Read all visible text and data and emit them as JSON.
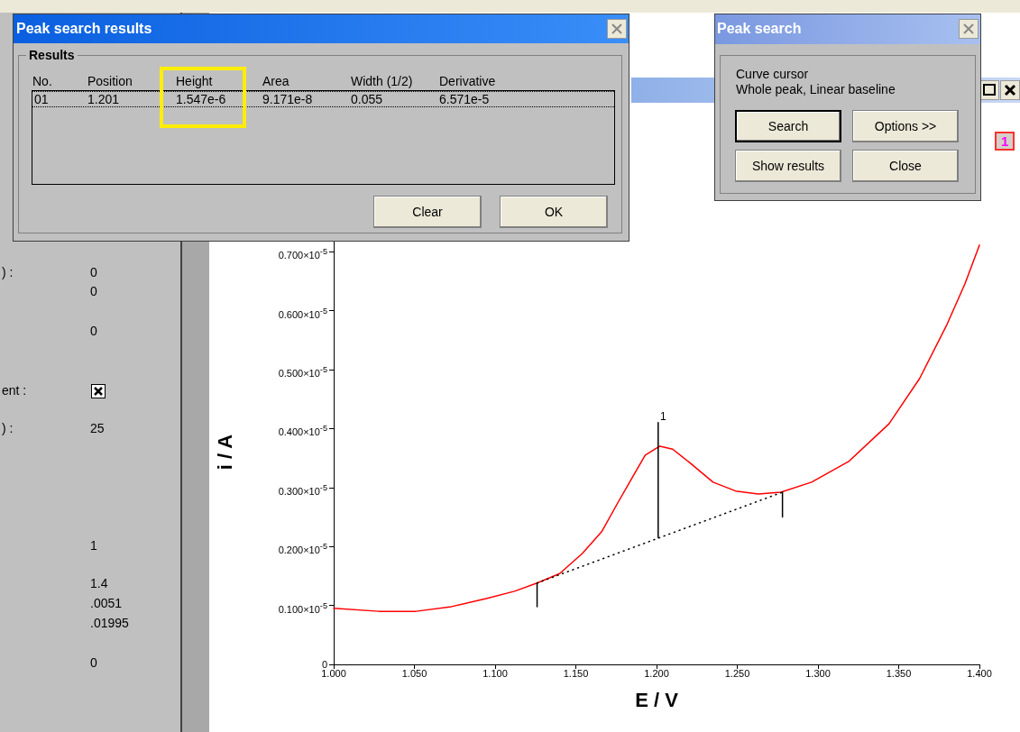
{
  "chart_data": {
    "type": "line",
    "xlabel": "E / V",
    "ylabel": "i / A",
    "xlim": [
      1.0,
      1.4
    ],
    "xticks": [
      {
        "value": 1.0,
        "label": "1.000"
      },
      {
        "value": 1.05,
        "label": "1.050"
      },
      {
        "value": 1.1,
        "label": "1.100"
      },
      {
        "value": 1.15,
        "label": "1.150"
      },
      {
        "value": 1.2,
        "label": "1.200"
      },
      {
        "value": 1.25,
        "label": "1.250"
      },
      {
        "value": 1.3,
        "label": "1.300"
      },
      {
        "value": 1.35,
        "label": "1.350"
      },
      {
        "value": 1.4,
        "label": "1.400"
      }
    ],
    "ylim": [
      0,
      7.2e-06
    ],
    "yticks": [
      0,
      {
        "value": 1e-06,
        "label": "0.100×10$^{-5}$"
      },
      {
        "value": 2e-06,
        "label": "0.200×10$^{-5}$"
      },
      {
        "value": 3e-06,
        "label": "0.300×10$^{-5}$"
      },
      {
        "value": 4e-06,
        "label": "0.400×10$^{-5}$"
      },
      {
        "value": 5e-06,
        "label": "0.500×10$^{-5}$"
      },
      {
        "value": 6e-06,
        "label": "0.600×10$^{-5}$"
      },
      {
        "value": 7e-06,
        "label": "0.700×10$^{-5}$"
      }
    ],
    "grid": false,
    "marker": "none",
    "line_style": "solid",
    "series": [
      {
        "color": "#ff0000",
        "x": [
          1.0,
          1.028,
          1.051,
          1.073,
          1.095,
          1.112,
          1.126,
          1.14,
          1.154,
          1.166,
          1.176,
          1.185,
          1.193,
          1.202,
          1.21,
          1.221,
          1.235,
          1.249,
          1.263,
          1.277,
          1.296,
          1.319,
          1.344,
          1.363,
          1.38,
          1.391,
          1.4
        ],
        "values": [
          9.5e-07,
          9e-07,
          9e-07,
          9.8e-07,
          1.12e-06,
          1.24e-06,
          1.38e-06,
          1.54e-06,
          1.88e-06,
          2.25e-06,
          2.74e-06,
          3.17e-06,
          3.55e-06,
          3.7e-06,
          3.65e-06,
          3.41e-06,
          3.09e-06,
          2.94e-06,
          2.89e-06,
          2.92e-06,
          3.09e-06,
          3.44e-06,
          4.08e-06,
          4.85e-06,
          5.77e-06,
          6.45e-06,
          7.11e-06
        ]
      },
      {
        "color": "#000000",
        "line_style": "dotted",
        "x": [
          1.126,
          1.278
        ],
        "values": [
          1.38e-06,
          2.92e-06
        ]
      },
      {
        "color": "#000000",
        "x": [
          1.201,
          1.201
        ],
        "values": [
          2.15e-06,
          4.1e-06
        ]
      },
      {
        "color": "#000000",
        "x": [
          1.126,
          1.126
        ],
        "values": [
          9.8e-07,
          1.38e-06
        ]
      },
      {
        "color": "#000000",
        "x": [
          1.278,
          1.278
        ],
        "values": [
          2.5e-06,
          2.92e-06
        ]
      }
    ],
    "annotations": [
      "Peak search results",
      "Results",
      "No.",
      "Position",
      "Height",
      "Area",
      "Width (1/2)",
      "Derivative",
      "01",
      "1.201",
      "1.547e-6",
      "9.171e-8",
      "0.055",
      "6.571e-5",
      "Clear",
      "OK",
      "Peak search",
      "Curve cursor",
      "Whole peak, Linear baseline",
      "Search",
      "Options >>",
      "Show results",
      "Close",
      "1",
      ") :",
      "0",
      "0",
      "0",
      "ent :",
      ") :",
      "25",
      "1",
      "1.4",
      ".0051",
      ".01995",
      "0",
      "1"
    ]
  }
}
